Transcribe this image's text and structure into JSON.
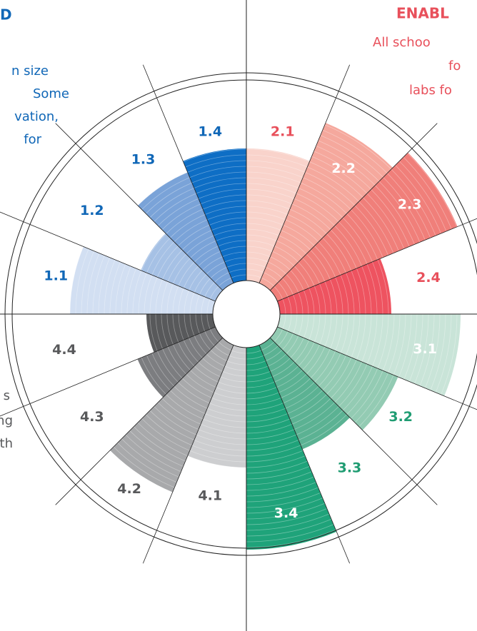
{
  "chart_data": {
    "type": "polar-bar",
    "categories": [
      "2.1",
      "2.2",
      "2.3",
      "2.4",
      "3.1",
      "3.2",
      "3.3",
      "3.4",
      "4.1",
      "4.2",
      "4.3",
      "4.4",
      "1.1",
      "1.2",
      "1.3",
      "1.4"
    ],
    "values": [
      232,
      290,
      320,
      203,
      300,
      230,
      205,
      330,
      215,
      270,
      165,
      140,
      247,
      160,
      215,
      232
    ],
    "colors": [
      "#f9d3cb",
      "#f5a89d",
      "#f07f7a",
      "#ee5360",
      "#c9e4d8",
      "#93cbb3",
      "#5bb293",
      "#1fa37a",
      "#cdced0",
      "#a8a9ab",
      "#7c7d80",
      "#58595b",
      "#d2dff2",
      "#a6c1e5",
      "#7aa3d8",
      "#0e6ec5"
    ],
    "label_colors": [
      "#e8505b",
      "#e8505b",
      "#e8505b",
      "#e8505b",
      "#1f9c72",
      "#1f9c72",
      "#1f9c72",
      "#1f9c72",
      "#58595b",
      "#58595b",
      "#58595b",
      "#58595b",
      "#1067b7",
      "#1067b7",
      "#1067b7",
      "#1067b7"
    ],
    "rlim": [
      0,
      338
    ]
  },
  "side_text": {
    "left_top": [
      "D",
      "n size",
      "Some",
      "vation,",
      "for"
    ],
    "right_top": [
      "ENABL",
      "All schoo",
      "fo",
      "labs fo"
    ],
    "left_bottom": [
      "s",
      "ng",
      "th"
    ]
  }
}
